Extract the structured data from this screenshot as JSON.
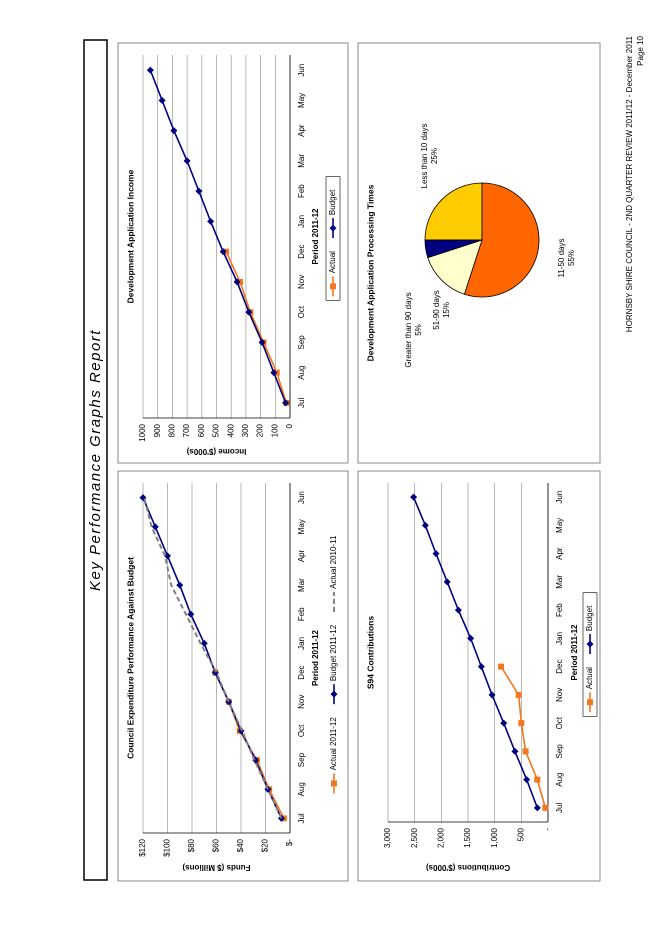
{
  "title": "Key Performance Graphs Report",
  "footer": {
    "text": "HORNSBY SHIRE COUNCIL - 2ND QUARTER REVIEW 2011/12 - December 2011",
    "page": "Page 10"
  },
  "chart_data": [
    {
      "type": "line",
      "title": "Council Expenditure Performance Against Budget",
      "x_label": "Period 2011-12",
      "y_label": "Funds ($ Millions)",
      "categories": [
        "Jul",
        "Aug",
        "Sep",
        "Oct",
        "Nov",
        "Dec",
        "Jan",
        "Feb",
        "Mar",
        "Apr",
        "May",
        "Jun"
      ],
      "series": [
        {
          "name": "Actual 2011-12",
          "color": "#f07820",
          "marker": "square",
          "values": [
            5,
            17,
            27,
            41,
            50,
            61,
            null,
            null,
            null,
            null,
            null,
            null
          ]
        },
        {
          "name": "Budget 2011-12",
          "color": "#000080",
          "marker": "diamond",
          "values": [
            7,
            18,
            28,
            40,
            50,
            61,
            70,
            81,
            90,
            100,
            110,
            120
          ]
        },
        {
          "name": "Actual 2010-11",
          "color": "#808080",
          "marker": "none",
          "dash": true,
          "values": [
            7,
            18,
            29,
            39,
            50,
            60,
            73,
            85,
            97,
            102,
            113,
            119
          ]
        }
      ],
      "ylim": [
        0,
        120
      ],
      "yticks": [
        {
          "value": 0,
          "label": "$-"
        },
        {
          "value": 20,
          "label": "$20"
        },
        {
          "value": 40,
          "label": "$40"
        },
        {
          "value": 60,
          "label": "$60"
        },
        {
          "value": 80,
          "label": "$80"
        },
        {
          "value": 100,
          "label": "$100"
        },
        {
          "value": 120,
          "label": "$120"
        }
      ],
      "grid": true,
      "legend": "bottom"
    },
    {
      "type": "line",
      "title": "Development Application Income",
      "x_label": "Period 2011-12",
      "y_label": "Income ($'000s)",
      "categories": [
        "Jul",
        "Aug",
        "Sep",
        "Oct",
        "Nov",
        "Dec",
        "Jan",
        "Feb",
        "Mar",
        "Apr",
        "May",
        "Jun"
      ],
      "series": [
        {
          "name": "Actual",
          "color": "#f07820",
          "marker": "square",
          "values": [
            25,
            90,
            180,
            270,
            340,
            435,
            null,
            null,
            null,
            null,
            null,
            null
          ]
        },
        {
          "name": "Budget",
          "color": "#000080",
          "marker": "diamond",
          "values": [
            30,
            110,
            190,
            280,
            360,
            455,
            540,
            620,
            700,
            790,
            870,
            950
          ]
        }
      ],
      "ylim": [
        0,
        1000
      ],
      "yticks": [
        0,
        100,
        200,
        300,
        400,
        500,
        600,
        700,
        800,
        900,
        1000
      ],
      "grid": true,
      "legend": "bottom"
    },
    {
      "type": "line",
      "title": "S94 Contributions",
      "x_label": "Period 2011-12",
      "y_label": "Contributions ($'000s)",
      "categories": [
        "Jul",
        "Aug",
        "Sep",
        "Oct",
        "Nov",
        "Dec",
        "Jan",
        "Feb",
        "Mar",
        "Apr",
        "May",
        "Jun"
      ],
      "series": [
        {
          "name": "Actual",
          "color": "#f07820",
          "marker": "square",
          "values": [
            50,
            200,
            420,
            500,
            550,
            880,
            null,
            null,
            null,
            null,
            null,
            null
          ]
        },
        {
          "name": "Budget",
          "color": "#000080",
          "marker": "diamond",
          "values": [
            200,
            400,
            620,
            830,
            1050,
            1250,
            1450,
            1680,
            1890,
            2100,
            2300,
            2520
          ]
        }
      ],
      "ylim": [
        0,
        3000
      ],
      "yticks": [
        {
          "value": 0,
          "label": "-"
        },
        500,
        {
          "value": 1000,
          "label": "1,000"
        },
        {
          "value": 1500,
          "label": "1,500"
        },
        {
          "value": 2000,
          "label": "2,000"
        },
        {
          "value": 2500,
          "label": "2,500"
        },
        {
          "value": 3000,
          "label": "3,000"
        }
      ],
      "grid": true,
      "legend": "bottom"
    },
    {
      "type": "pie",
      "title": "Development Application Processing Times",
      "categories": [
        "Less than 10 days",
        "11-50 days",
        "51-90 days",
        "Greater than 90 days"
      ],
      "values": [
        25,
        55,
        15,
        5
      ],
      "value_labels": [
        "25%",
        "55%",
        "15%",
        "5%"
      ],
      "colors": [
        "#ffcc00",
        "#ff6600",
        "#ffffcc",
        "#000080"
      ]
    }
  ]
}
